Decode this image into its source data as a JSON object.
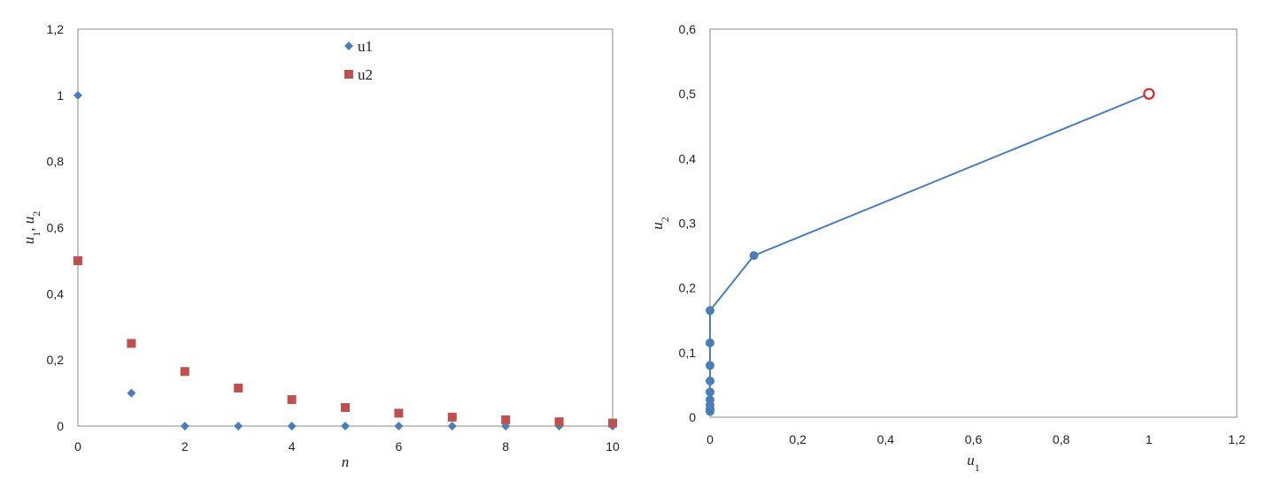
{
  "chart_data": [
    {
      "type": "scatter",
      "xlabel": "n",
      "ylabel": "u1, u2",
      "ylabel_parts": [
        "u",
        "1",
        ", ",
        "u",
        "2"
      ],
      "xlim": [
        0,
        10
      ],
      "ylim": [
        0,
        1.2
      ],
      "xticks": [
        0,
        2,
        4,
        6,
        8,
        10
      ],
      "yticks": [
        0,
        0.2,
        0.4,
        0.6,
        0.8,
        1,
        1.2
      ],
      "xtick_labels": [
        "0",
        "2",
        "4",
        "6",
        "8",
        "10"
      ],
      "ytick_labels": [
        "0",
        "0,2",
        "0,4",
        "0,6",
        "0,8",
        "1",
        "1,2"
      ],
      "grid": false,
      "legend_position": "top-center",
      "series": [
        {
          "name": "u1",
          "marker": "diamond",
          "color": "#4a7ebb",
          "x": [
            0,
            1,
            2,
            3,
            4,
            5,
            6,
            7,
            8,
            9,
            10
          ],
          "y": [
            1,
            0.1,
            0,
            0,
            0,
            0,
            0,
            0,
            0,
            0,
            0
          ]
        },
        {
          "name": "u2",
          "marker": "square",
          "color": "#c0504d",
          "x": [
            0,
            1,
            2,
            3,
            4,
            5,
            6,
            7,
            8,
            9,
            10
          ],
          "y": [
            0.5,
            0.25,
            0.165,
            0.115,
            0.08,
            0.056,
            0.039,
            0.027,
            0.019,
            0.013,
            0.009
          ]
        }
      ]
    },
    {
      "type": "line",
      "xlabel": "u1",
      "ylabel": "u2",
      "xlabel_parts": [
        "u",
        "1"
      ],
      "ylabel_parts": [
        "u",
        "2"
      ],
      "xlim": [
        0,
        1.2
      ],
      "ylim": [
        0,
        0.6
      ],
      "xticks": [
        0,
        0.2,
        0.4,
        0.6,
        0.8,
        1,
        1.2
      ],
      "yticks": [
        0,
        0.1,
        0.2,
        0.3,
        0.4,
        0.5,
        0.6
      ],
      "xtick_labels": [
        "0",
        "0,2",
        "0,4",
        "0,6",
        "0,8",
        "1",
        "1,2"
      ],
      "ytick_labels": [
        "0",
        "0,1",
        "0,2",
        "0,3",
        "0,4",
        "0,5",
        "0,6"
      ],
      "grid": false,
      "legend_position": "none",
      "series": [
        {
          "name": "",
          "color": "#4a7ebb",
          "marker": "circle",
          "x": [
            1,
            0.1,
            0,
            0,
            0,
            0,
            0,
            0,
            0,
            0,
            0
          ],
          "y": [
            0.5,
            0.25,
            0.165,
            0.115,
            0.08,
            0.056,
            0.039,
            0.027,
            0.019,
            0.013,
            0.009
          ]
        }
      ],
      "highlight": {
        "x": 1,
        "y": 0.5,
        "color": "#d9262c",
        "marker": "open-circle"
      }
    }
  ]
}
